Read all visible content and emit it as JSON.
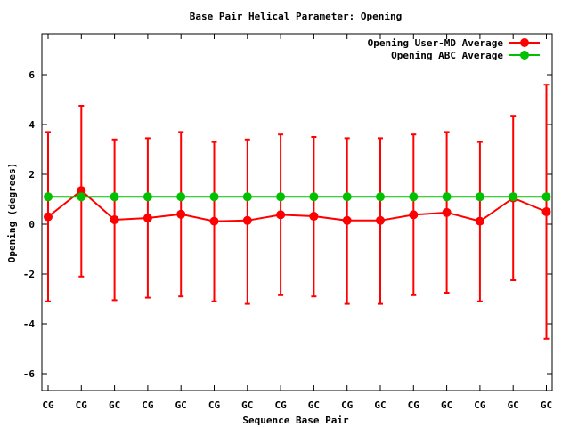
{
  "chart_data": {
    "type": "line",
    "title": "Base Pair Helical Parameter: Opening",
    "xlabel": "Sequence Base Pair",
    "ylabel": "Opening (degrees)",
    "categories": [
      "CG",
      "CG",
      "GC",
      "CG",
      "GC",
      "CG",
      "GC",
      "CG",
      "GC",
      "CG",
      "GC",
      "CG",
      "GC",
      "CG",
      "GC",
      "GC"
    ],
    "yticks": [
      -6,
      -4,
      -2,
      0,
      2,
      4,
      6
    ],
    "ylim": [
      -6.7,
      7.6
    ],
    "grid": false,
    "legend_position": "top-right",
    "series": [
      {
        "name": "Opening User-MD Average",
        "color": "#ff0000",
        "values": [
          0.3,
          1.35,
          0.18,
          0.25,
          0.4,
          0.12,
          0.15,
          0.38,
          0.32,
          0.15,
          0.15,
          0.38,
          0.47,
          0.12,
          1.05,
          0.5
        ],
        "error_low": [
          -3.1,
          -2.1,
          -3.05,
          -2.95,
          -2.9,
          -3.1,
          -3.2,
          -2.85,
          -2.9,
          -3.2,
          -3.2,
          -2.85,
          -2.75,
          -3.1,
          -2.25,
          -4.6
        ],
        "error_high": [
          3.7,
          4.75,
          3.4,
          3.45,
          3.7,
          3.3,
          3.4,
          3.6,
          3.5,
          3.45,
          3.45,
          3.6,
          3.7,
          3.3,
          4.35,
          5.6
        ]
      },
      {
        "name": "Opening ABC Average",
        "color": "#00c000",
        "values": [
          1.1,
          1.1,
          1.1,
          1.1,
          1.1,
          1.1,
          1.1,
          1.1,
          1.1,
          1.1,
          1.1,
          1.1,
          1.1,
          1.1,
          1.1,
          1.1
        ]
      }
    ]
  }
}
